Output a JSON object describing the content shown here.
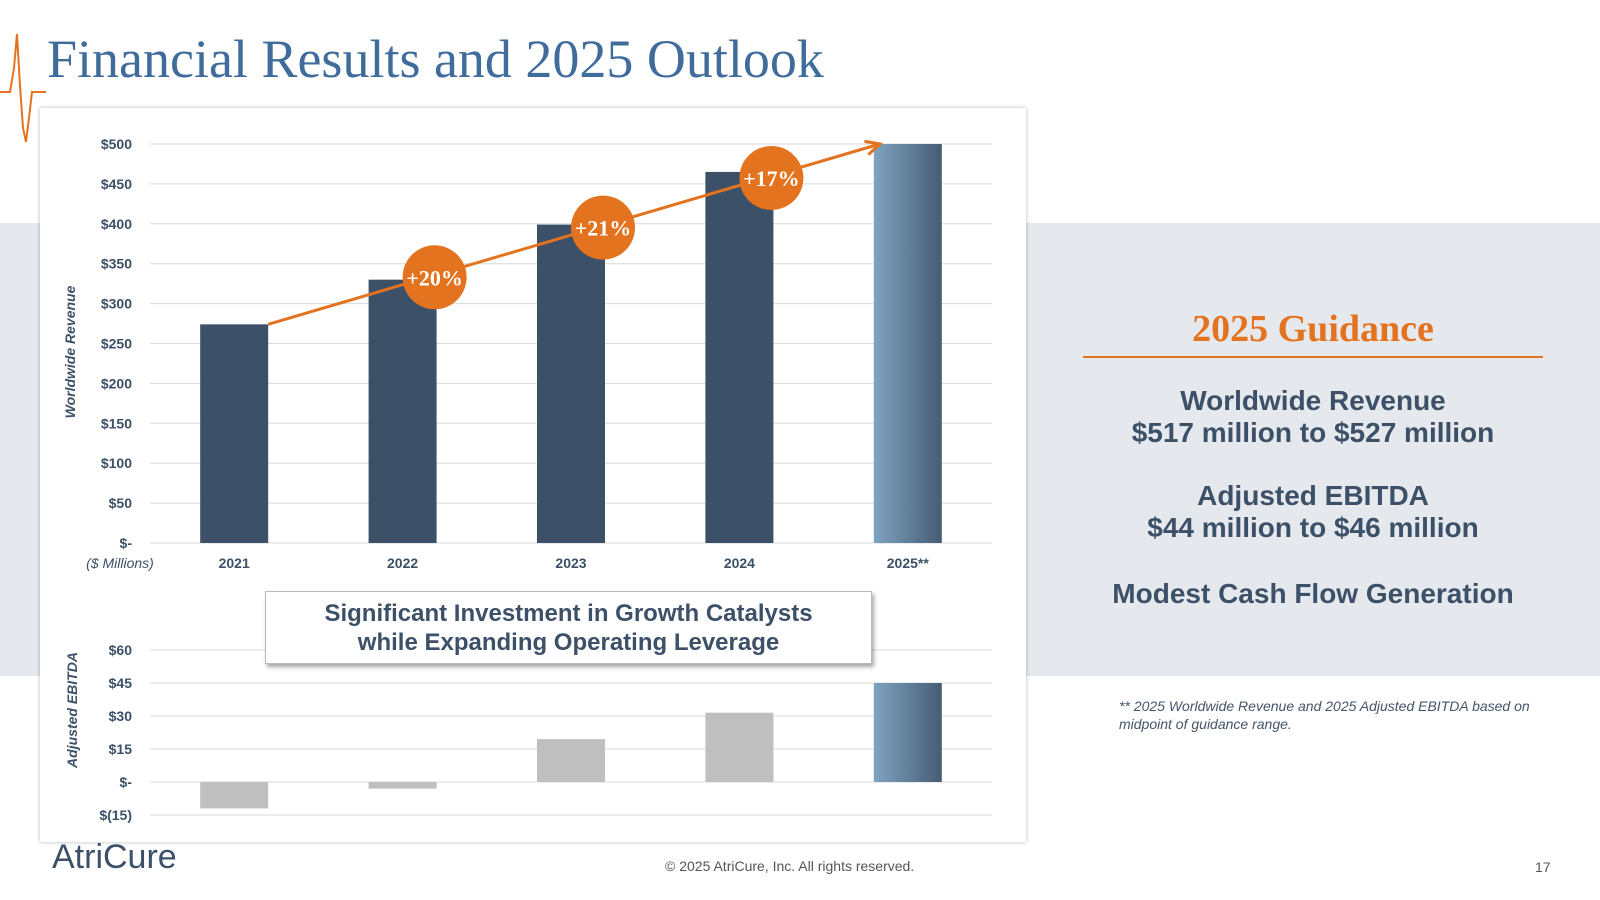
{
  "page": {
    "title": "Financial Results and 2025 Outlook",
    "footer": {
      "logo": "AtriCure",
      "copyright": "© 2025 AtriCure, Inc. All rights reserved.",
      "page_number": "17"
    },
    "callout": {
      "line1": "Significant Investment in Growth Catalysts",
      "line2": "while Expanding Operating Leverage"
    },
    "guidance": {
      "title": "2025 Guidance",
      "revenue_label": "Worldwide Revenue",
      "revenue_range": "$517 million to $527 million",
      "ebitda_label": "Adjusted EBITDA",
      "ebitda_range": "$44 million to $46 million",
      "cash_flow": "Modest Cash Flow Generation"
    },
    "footnote": "** 2025 Worldwide Revenue and 2025 Adjusted EBITDA based on midpoint of guidance range."
  },
  "colors": {
    "title": "#3f6c9a",
    "bar": "#3c5067",
    "accent": "#e4731f",
    "ebitda_bar": "#bfbfbf",
    "band": "#e5e8ed"
  },
  "chart_data": [
    {
      "type": "bar",
      "ylabel": "Worldwide Revenue",
      "unit_note": "($ Millions)",
      "categories": [
        "2021",
        "2022",
        "2023",
        "2024",
        "2025**"
      ],
      "values": [
        274,
        330,
        399,
        465,
        522
      ],
      "ylim": [
        0,
        500
      ],
      "yticks": [
        0,
        50,
        100,
        150,
        200,
        250,
        300,
        350,
        400,
        450,
        500
      ],
      "ytick_labels": [
        "$-",
        "$50",
        "$100",
        "$150",
        "$200",
        "$250",
        "$300",
        "$350",
        "$400",
        "$450",
        "$500"
      ],
      "growth_labels": [
        "+20%",
        "+21%",
        "+17%"
      ],
      "grid": true,
      "highlight_last": true
    },
    {
      "type": "bar",
      "ylabel": "Adjusted EBITDA",
      "categories": [
        "2021",
        "2022",
        "2023",
        "2024",
        "2025**"
      ],
      "values": [
        -12,
        -3,
        19.5,
        31.5,
        45
      ],
      "ylim": [
        -15,
        60
      ],
      "yticks": [
        -15,
        0,
        15,
        30,
        45,
        60
      ],
      "ytick_labels": [
        "$(15)",
        "$-",
        "$15",
        "$30",
        "$45",
        "$60"
      ],
      "grid": true,
      "highlight_last": true
    }
  ]
}
